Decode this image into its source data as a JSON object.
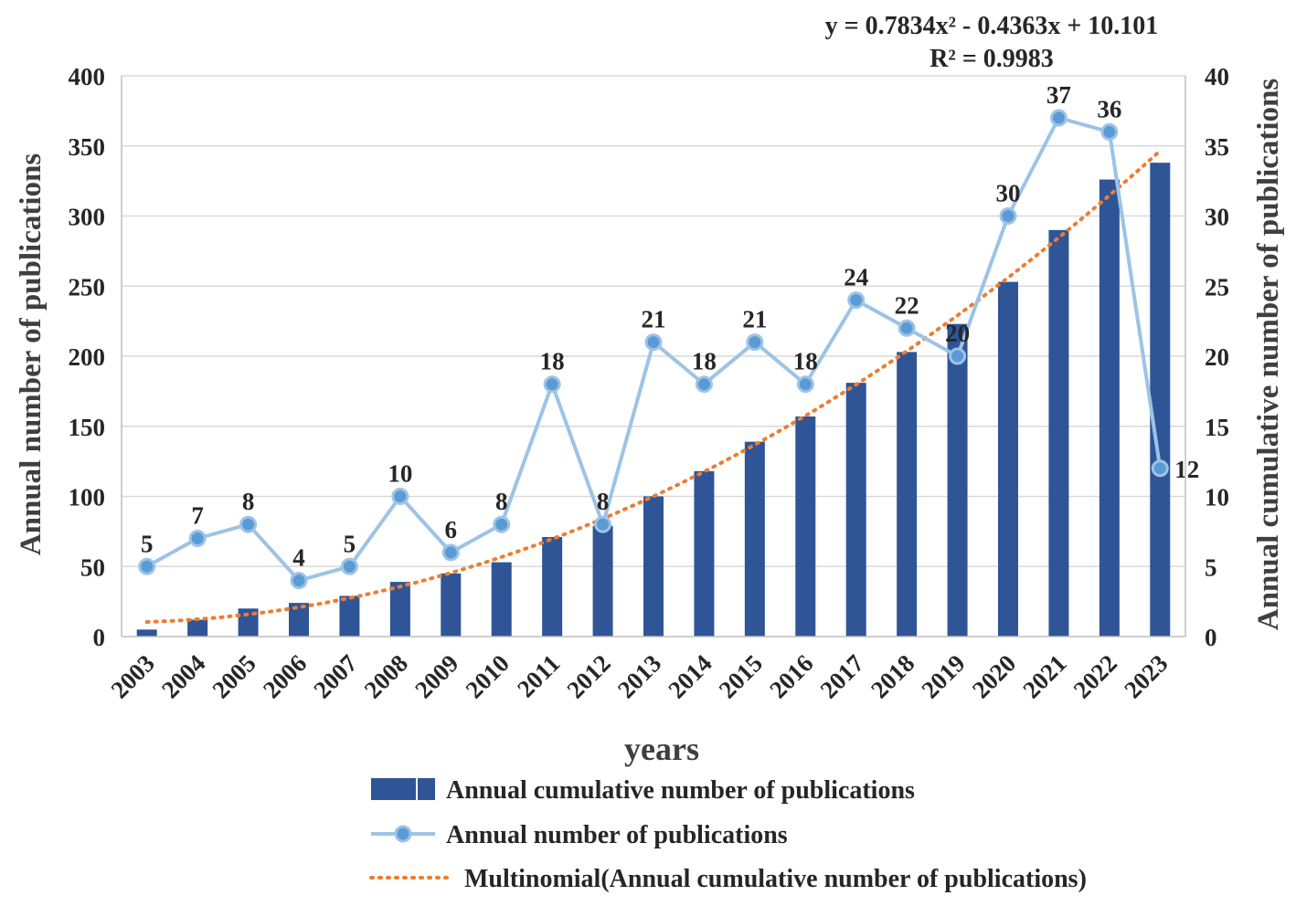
{
  "chart_data": {
    "type": "bar",
    "title": "",
    "xlabel": "years",
    "ylabel_left": "Annual number of publications",
    "ylabel_right": "Annual cumulative number of publications",
    "ylim_left": [
      0,
      400
    ],
    "yticks_left": [
      0,
      50,
      100,
      150,
      200,
      250,
      300,
      350,
      400
    ],
    "ylim_right": [
      0,
      40
    ],
    "yticks_right": [
      0,
      5,
      10,
      15,
      20,
      25,
      30,
      35,
      40
    ],
    "grid": true,
    "categories": [
      "2003",
      "2004",
      "2005",
      "2006",
      "2007",
      "2008",
      "2009",
      "2010",
      "2011",
      "2012",
      "2013",
      "2014",
      "2015",
      "2016",
      "2017",
      "2018",
      "2019",
      "2020",
      "2021",
      "2022",
      "2023"
    ],
    "series": [
      {
        "name": "Annual cumulative number of publications",
        "kind": "bar",
        "axis": "left",
        "color": "#2f5597",
        "values": [
          5,
          12,
          20,
          24,
          29,
          39,
          45,
          53,
          71,
          79,
          100,
          118,
          139,
          157,
          181,
          203,
          223,
          253,
          290,
          326,
          338
        ]
      },
      {
        "name": "Annual number of publications",
        "kind": "line",
        "axis": "right",
        "color": "#9dc3e6",
        "values": [
          5,
          7,
          8,
          4,
          5,
          10,
          6,
          8,
          18,
          8,
          21,
          18,
          21,
          18,
          24,
          22,
          20,
          30,
          37,
          36,
          12
        ]
      },
      {
        "name": "Multinomial(Annual cumulative number of publications)",
        "kind": "trendline",
        "axis": "left",
        "color": "#ed7d31",
        "coefficients": {
          "a": 0.7834,
          "b": -0.4363,
          "c": 10.101
        }
      }
    ],
    "annotations": {
      "equation": "y = 0.7834x² - 0.4363x + 10.101",
      "r_squared": "R² = 0.9983"
    },
    "legend_position": "bottom"
  }
}
